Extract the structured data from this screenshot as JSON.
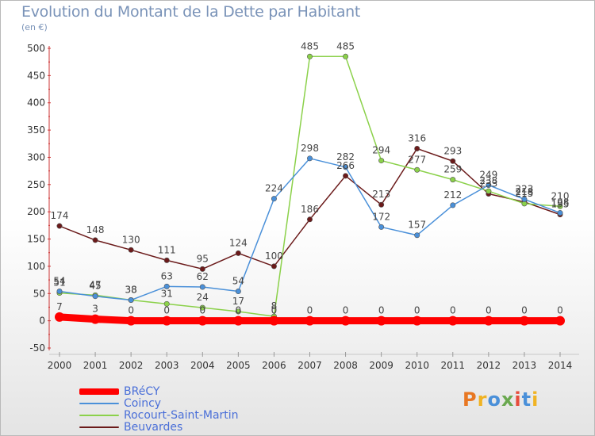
{
  "header": {
    "title": "Evolution du Montant de la Dette par Habitant",
    "subtitle": "(en €)"
  },
  "logo": {
    "text": "Proxiti",
    "colors": [
      "#e87722",
      "#f0b323",
      "#4a90d9",
      "#6aa84f",
      "#e74c3c",
      "#4a90d9",
      "#f0b323"
    ]
  },
  "chart_data": {
    "type": "line",
    "title": "Evolution du Montant de la Dette par Habitant",
    "subtitle": "(en €)",
    "x": [
      "2000",
      "2001",
      "2002",
      "2003",
      "2004",
      "2005",
      "2006",
      "2007",
      "2008",
      "2009",
      "2010",
      "2011",
      "2012",
      "2013",
      "2014"
    ],
    "ylim": [
      -50,
      500
    ],
    "yticks": [
      -50,
      0,
      50,
      100,
      150,
      200,
      250,
      300,
      350,
      400,
      450,
      500
    ],
    "grid": false,
    "legend_position": "bottom-left",
    "series": [
      {
        "name": "BRéCY",
        "color": "#ff0000",
        "values": [
          7,
          3,
          0,
          0,
          0,
          0,
          0,
          0,
          0,
          0,
          0,
          0,
          0,
          0,
          0
        ],
        "labels": [
          "7",
          "3",
          "0",
          "0",
          "0",
          "0",
          "0",
          "0",
          "0",
          "0",
          "0",
          "0",
          "0",
          "0",
          "0"
        ]
      },
      {
        "name": "Coincy",
        "color": "#4a90d9",
        "values": [
          54,
          45,
          38,
          63,
          62,
          54,
          224,
          298,
          282,
          172,
          157,
          212,
          249,
          223,
          198
        ],
        "labels": [
          "54",
          "45",
          "38",
          "63",
          "62",
          "54",
          "224",
          "298",
          "282",
          "172",
          "157",
          "212",
          "249",
          "223",
          "198"
        ]
      },
      {
        "name": "Rocourt-Saint-Martin",
        "color": "#8bd14a",
        "values": [
          51,
          47,
          38,
          31,
          24,
          17,
          8,
          485,
          485,
          294,
          277,
          259,
          238,
          215,
          210
        ],
        "labels": [
          "51",
          "47",
          "38",
          "31",
          "24",
          "17",
          "8",
          "485",
          "485",
          "294",
          "277",
          "259",
          "238",
          "215",
          "210"
        ]
      },
      {
        "name": "Beuvardes",
        "color": "#6b1a1a",
        "values": [
          174,
          148,
          130,
          111,
          95,
          124,
          100,
          186,
          266,
          213,
          316,
          293,
          233,
          218,
          195
        ],
        "labels": [
          "174",
          "148",
          "130",
          "111",
          "95",
          "124",
          "100",
          "186",
          "266",
          "213",
          "316",
          "293",
          "233",
          "218",
          "195"
        ]
      }
    ]
  }
}
